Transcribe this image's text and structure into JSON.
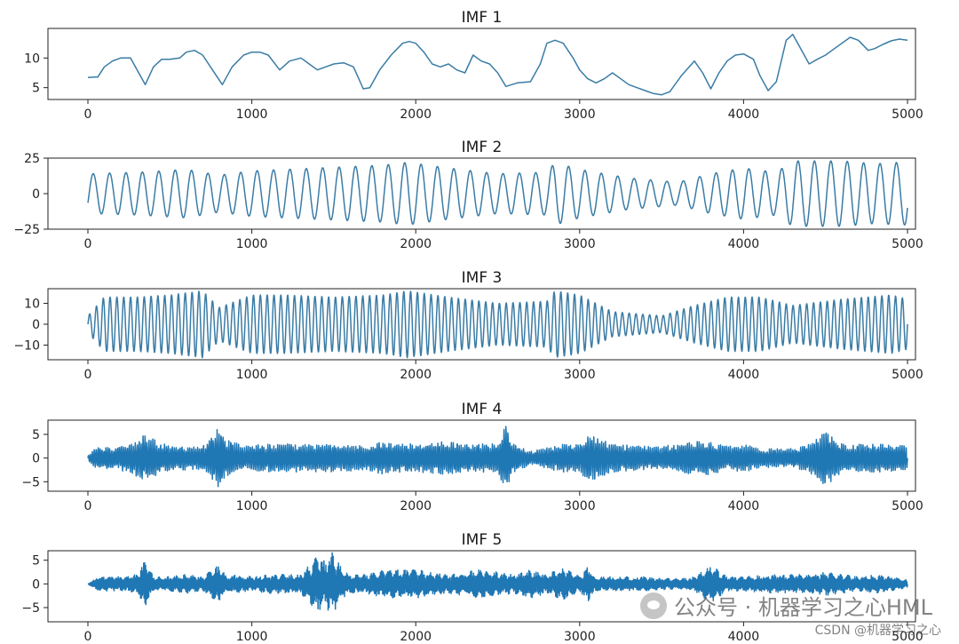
{
  "chart_data": [
    {
      "type": "line",
      "title": "IMF 1",
      "xlim": [
        0,
        5000
      ],
      "ylim": [
        3,
        15
      ],
      "xticks": [
        0,
        1000,
        2000,
        3000,
        4000,
        5000
      ],
      "yticks": [
        5,
        10
      ],
      "color": "#3a7ca5",
      "series": [
        {
          "x": [
            0,
            40,
            60,
            100,
            150,
            200,
            260,
            300,
            350,
            400,
            450,
            500,
            560,
            600,
            650,
            700,
            760,
            820,
            880,
            950,
            1000,
            1050,
            1100,
            1170,
            1230,
            1300,
            1350,
            1400,
            1450,
            1500,
            1560,
            1620,
            1680,
            1720,
            1780,
            1850,
            1920,
            1960,
            2000,
            2050,
            2100,
            2150,
            2200,
            2250,
            2300,
            2350,
            2400,
            2450,
            2500,
            2550,
            2620,
            2700,
            2760,
            2800,
            2850,
            2900,
            2960,
            3000,
            3050,
            3100,
            3150,
            3200,
            3250,
            3300,
            3350,
            3400,
            3450,
            3500,
            3550,
            3620,
            3700,
            3750,
            3800,
            3850,
            3900,
            3950,
            4000,
            4060,
            4100,
            4150,
            4200,
            4260,
            4300,
            4350,
            4400,
            4450,
            4500,
            4550,
            4650,
            4700,
            4760,
            4800,
            4850,
            4900,
            4950,
            5000
          ],
          "y": [
            6.7,
            6.8,
            6.8,
            8.5,
            9.5,
            10,
            10,
            8,
            5.5,
            8.5,
            9.8,
            9.8,
            10,
            11,
            11.3,
            10.5,
            8,
            5.5,
            8.5,
            10.5,
            11,
            11,
            10.5,
            8,
            9.5,
            10,
            9,
            8,
            8.5,
            9,
            9.2,
            8.5,
            4.8,
            5,
            8,
            10.5,
            12.5,
            12.8,
            12.5,
            11,
            9,
            8.5,
            9,
            8,
            7.5,
            10.5,
            9.5,
            9,
            7.5,
            5.2,
            5.8,
            6,
            9,
            12.5,
            13,
            12.5,
            10,
            8,
            6.5,
            5.8,
            6.5,
            7.5,
            6.5,
            5.5,
            5,
            4.5,
            4,
            3.8,
            4.3,
            7,
            9.5,
            7.5,
            4.8,
            7.5,
            9.5,
            10.5,
            10.7,
            9.8,
            7,
            4.5,
            6,
            13,
            14,
            11.5,
            9,
            9.8,
            10.5,
            11.5,
            13.5,
            13,
            11.3,
            11.6,
            12.3,
            12.9,
            13.2,
            13
          ]
        }
      ]
    },
    {
      "type": "line",
      "title": "IMF 2",
      "xlim": [
        0,
        5000
      ],
      "ylim": [
        -25,
        25
      ],
      "xticks": [
        0,
        1000,
        2000,
        3000,
        4000,
        5000
      ],
      "yticks": [
        -25,
        0,
        25
      ],
      "color": "#3a7ca5",
      "series": [
        {
          "cycles": 50,
          "amp_x": [
            0,
            300,
            600,
            800,
            1000,
            1400,
            1800,
            1950,
            2200,
            2500,
            2800,
            2850,
            3000,
            3300,
            3600,
            3800,
            4000,
            4200,
            4300,
            4600,
            4800,
            4950,
            5000
          ],
          "amp_y": [
            14,
            15,
            17,
            13,
            16,
            18,
            20,
            22,
            18,
            14,
            15,
            22,
            17,
            11,
            8,
            14,
            18,
            15,
            23,
            23,
            21,
            22,
            22
          ]
        }
      ]
    },
    {
      "type": "line",
      "title": "IMF 3",
      "xlim": [
        0,
        5000
      ],
      "ylim": [
        -17,
        17
      ],
      "xticks": [
        0,
        1000,
        2000,
        3000,
        4000,
        5000
      ],
      "yticks": [
        -10,
        0,
        10
      ],
      "color": "#3a7ca5",
      "series": [
        {
          "cycles": 120,
          "amp_x": [
            0,
            100,
            300,
            500,
            700,
            800,
            1000,
            1200,
            1500,
            1800,
            1950,
            2200,
            2500,
            2800,
            2850,
            3000,
            3200,
            3500,
            3700,
            3900,
            4100,
            4300,
            4600,
            4900,
            5000
          ],
          "amp_y": [
            4,
            13,
            13,
            14,
            16,
            8,
            14,
            14,
            13,
            14,
            16,
            13,
            10,
            11,
            16,
            14,
            6,
            4,
            9,
            13,
            13,
            9,
            12,
            14,
            12
          ]
        }
      ]
    },
    {
      "type": "line",
      "title": "IMF 4",
      "xlim": [
        0,
        5000
      ],
      "ylim": [
        -7,
        8
      ],
      "xticks": [
        0,
        1000,
        2000,
        3000,
        4000,
        5000
      ],
      "yticks": [
        -5,
        0,
        5
      ],
      "color": "#1f77b4",
      "series": [
        {
          "cycles": 420,
          "amp_x": [
            0,
            60,
            150,
            250,
            350,
            450,
            600,
            700,
            800,
            850,
            950,
            1100,
            1300,
            1500,
            1700,
            1800,
            1850,
            2000,
            2200,
            2400,
            2500,
            2550,
            2600,
            2700,
            2900,
            3000,
            3050,
            3200,
            3400,
            3500,
            3700,
            3800,
            3900,
            4000,
            4100,
            4300,
            4400,
            4500,
            4600,
            4700,
            4800,
            4900,
            5000
          ],
          "amp_y": [
            0.5,
            2.5,
            2.5,
            3,
            5,
            3,
            2.5,
            2.5,
            6.5,
            4,
            2.5,
            3,
            3,
            3,
            2.5,
            3.5,
            3,
            3,
            3.5,
            3,
            3,
            7,
            3,
            1.5,
            3,
            3,
            5,
            3,
            2.5,
            2.5,
            3.5,
            3.5,
            2.5,
            3,
            2,
            2,
            3,
            6,
            3,
            3,
            3,
            3,
            2.5
          ]
        }
      ]
    },
    {
      "type": "line",
      "title": "IMF 5",
      "xlim": [
        0,
        5000
      ],
      "ylim": [
        -8,
        7
      ],
      "xticks": [
        0,
        1000,
        2000,
        3000,
        4000,
        5000
      ],
      "yticks": [
        -5,
        0,
        5
      ],
      "color": "#1f77b4",
      "series": [
        {
          "cycles": 900,
          "amp_x": [
            0,
            60,
            100,
            200,
            300,
            350,
            400,
            500,
            600,
            700,
            800,
            850,
            900,
            1000,
            1100,
            1200,
            1300,
            1400,
            1450,
            1500,
            1550,
            1600,
            1700,
            1800,
            2000,
            2200,
            2400,
            2500,
            2600,
            2700,
            2800,
            2900,
            3000,
            3050,
            3100,
            3200,
            3400,
            3600,
            3700,
            3800,
            3900,
            4000,
            4200,
            4400,
            4500,
            4700,
            4800,
            4900,
            5000
          ],
          "amp_y": [
            0,
            1.5,
            1.5,
            1.5,
            2,
            5,
            1.5,
            1.5,
            2,
            1.5,
            4,
            1.5,
            2,
            1.5,
            2,
            2,
            2,
            6,
            5,
            7,
            3,
            2,
            2,
            3,
            3,
            2,
            3,
            2.5,
            2,
            3,
            2,
            3.5,
            1.5,
            4,
            1.5,
            1.5,
            1.5,
            1,
            1.5,
            4,
            1.5,
            1.5,
            2,
            2,
            2.5,
            1.5,
            2,
            1.5,
            0.8
          ]
        }
      ]
    }
  ],
  "watermark": {
    "main": "公众号 · 机器学习之心HML",
    "sub": "CSDN @机器学习之心"
  }
}
